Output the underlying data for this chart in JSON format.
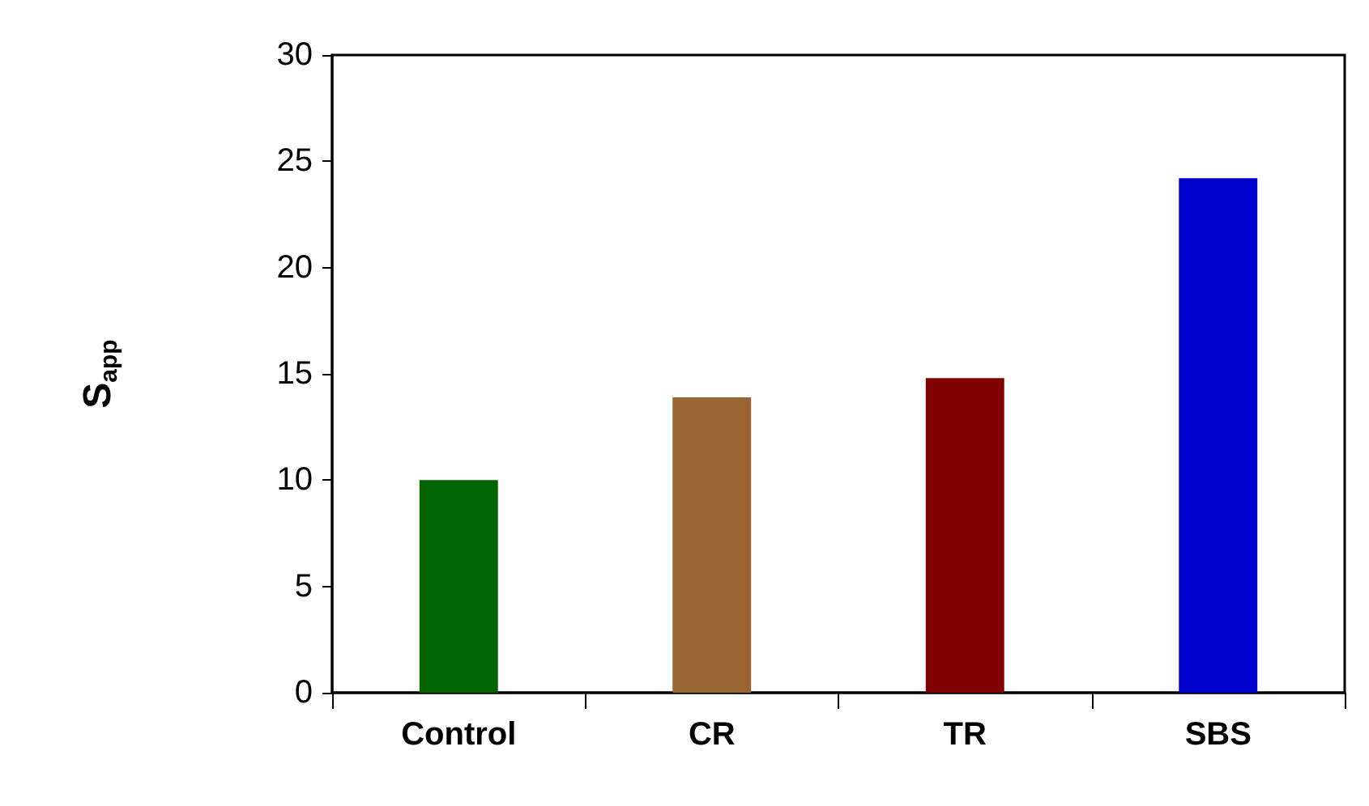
{
  "chart_data": {
    "type": "bar",
    "ylabel": "S$_{app}$",
    "categories": [
      "Control",
      "CR",
      "TR",
      "SBS"
    ],
    "values": [
      10.0,
      13.9,
      14.8,
      24.2
    ],
    "colors": [
      "#006400",
      "#996633",
      "#800000",
      "#0000cc"
    ],
    "ylim": [
      0,
      30
    ],
    "yticks": [
      0,
      5,
      10,
      15,
      20,
      25,
      30
    ],
    "grid": false
  }
}
